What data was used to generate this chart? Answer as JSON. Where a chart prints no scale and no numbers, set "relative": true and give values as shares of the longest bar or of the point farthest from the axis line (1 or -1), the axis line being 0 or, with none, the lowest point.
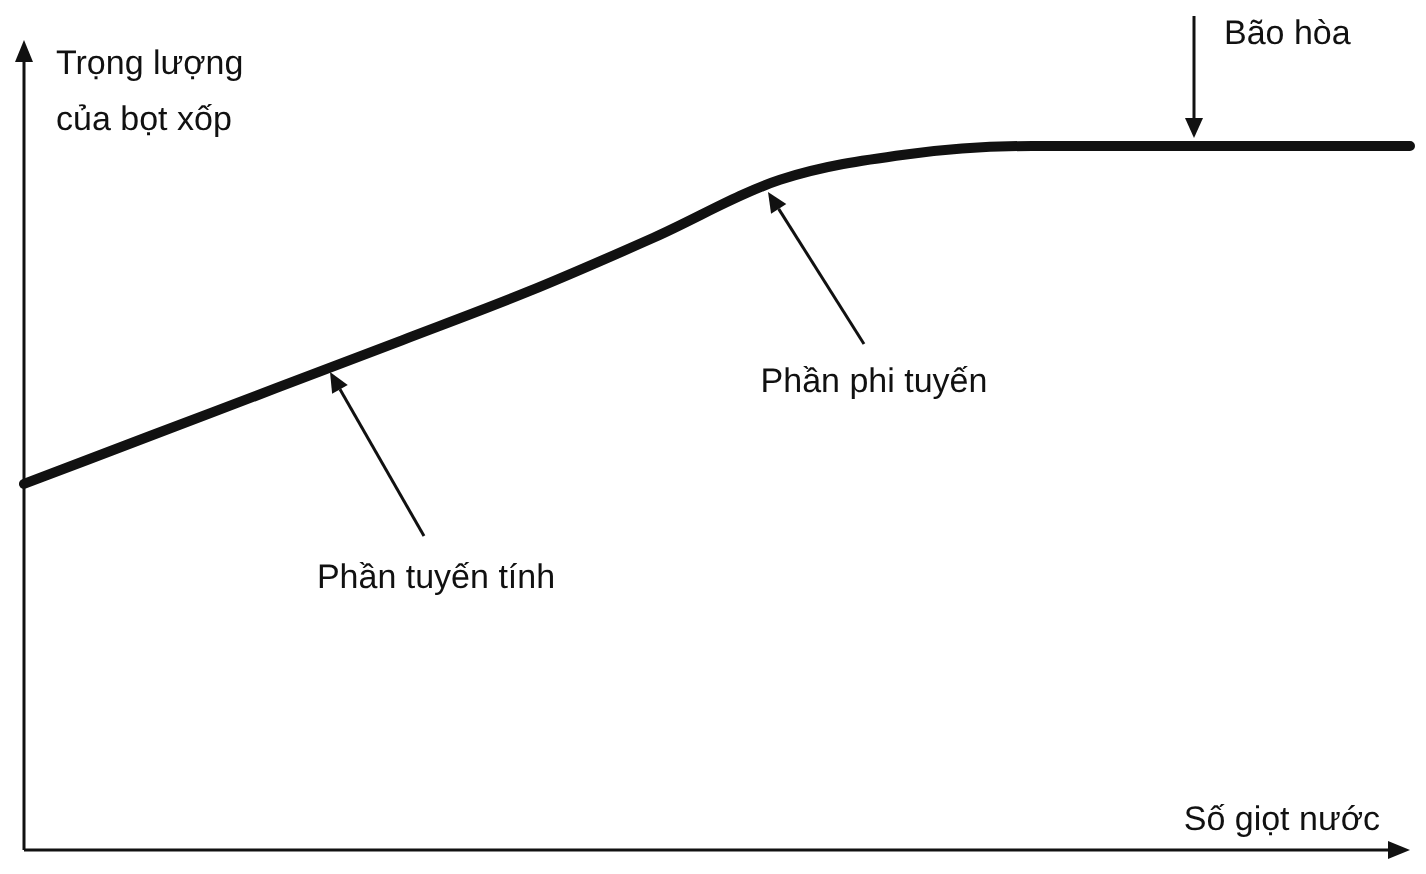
{
  "chart_data": {
    "type": "line",
    "relative": true,
    "ylabel": "Trọng lượng của bọt xốp",
    "xlabel": "Số giọt nước",
    "categories": [
      null,
      null,
      null,
      null,
      null,
      null,
      null,
      null,
      null,
      null,
      null,
      null
    ],
    "series": [
      {
        "color": "#111111",
        "values": [
          0.52,
          0.588,
          0.656,
          0.724,
          0.793,
          0.87,
          0.952,
          0.988,
          1,
          1,
          1,
          1
        ]
      }
    ],
    "annotations": [
      "Bão hòa",
      "Phần phi tuyến",
      "Phần tuyến tính"
    ],
    "line_style": "solid"
  }
}
